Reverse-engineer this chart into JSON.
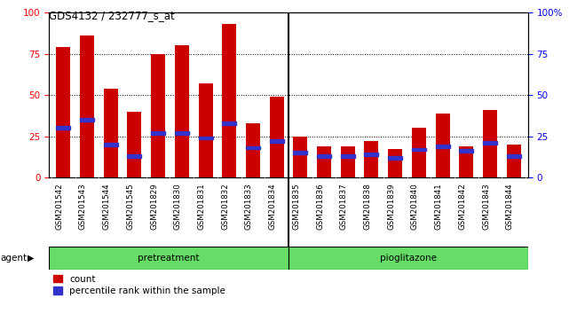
{
  "title": "GDS4132 / 232777_s_at",
  "samples": [
    "GSM201542",
    "GSM201543",
    "GSM201544",
    "GSM201545",
    "GSM201829",
    "GSM201830",
    "GSM201831",
    "GSM201832",
    "GSM201833",
    "GSM201834",
    "GSM201835",
    "GSM201836",
    "GSM201837",
    "GSM201838",
    "GSM201839",
    "GSM201840",
    "GSM201841",
    "GSM201842",
    "GSM201843",
    "GSM201844"
  ],
  "counts": [
    79,
    86,
    54,
    40,
    75,
    80,
    57,
    93,
    33,
    49,
    25,
    19,
    19,
    22,
    17,
    30,
    39,
    19,
    41,
    20
  ],
  "percentile": [
    30,
    35,
    20,
    13,
    27,
    27,
    24,
    33,
    18,
    22,
    15,
    13,
    13,
    14,
    12,
    17,
    19,
    16,
    21,
    13
  ],
  "bar_color": "#cc0000",
  "percentile_color": "#3333cc",
  "yticks": [
    0,
    25,
    50,
    75,
    100
  ],
  "group_label_pretreatment": "pretreatment",
  "group_label_pioglitazone": "pioglitazone",
  "group_split": 10,
  "green_color": "#66dd66",
  "grey_color": "#c8c8c8",
  "agent_label": "agent"
}
